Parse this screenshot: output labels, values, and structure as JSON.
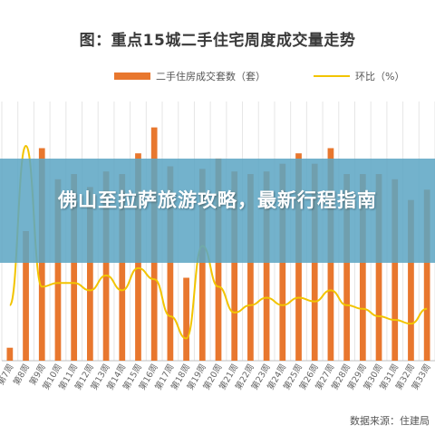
{
  "chart_data": {
    "type": "bar",
    "title": "图：重点15城二手住宅周度成交量走势",
    "categories": [
      "第7周",
      "第8周",
      "第9周",
      "第10周",
      "第11周",
      "第12周",
      "第13周",
      "第14周",
      "第15周",
      "第16周",
      "第17周",
      "第18周",
      "第19周",
      "第20周",
      "第21周",
      "第22周",
      "第23周",
      "第24周",
      "第25周",
      "第26周",
      "第27周",
      "第28周",
      "第29周",
      "第30周",
      "第31周",
      "第32周",
      "第33周"
    ],
    "series": [
      {
        "name": "二手住房成交套数（套）",
        "type": "bar",
        "color": "#e8772e",
        "values": [
          5,
          50,
          82,
          70,
          72,
          67,
          73,
          72,
          80,
          90,
          75,
          32,
          74,
          78,
          73,
          72,
          73,
          76,
          80,
          76,
          82,
          72,
          72,
          72,
          70,
          62,
          66
        ]
      },
      {
        "name": "环比（%）",
        "type": "line",
        "color": "#f2c400",
        "values": [
          15,
          58,
          20,
          21,
          21,
          19,
          23,
          19,
          25,
          22,
          12,
          6,
          31,
          20,
          13,
          15,
          17,
          15,
          17,
          16,
          19,
          15,
          14,
          12,
          11,
          10,
          14
        ]
      }
    ],
    "grid": true,
    "legend_position": "top"
  },
  "banner": {
    "text": "佛山至拉萨旅游攻略，最新行程指南"
  },
  "source": {
    "text": "数据来源：住建局"
  }
}
